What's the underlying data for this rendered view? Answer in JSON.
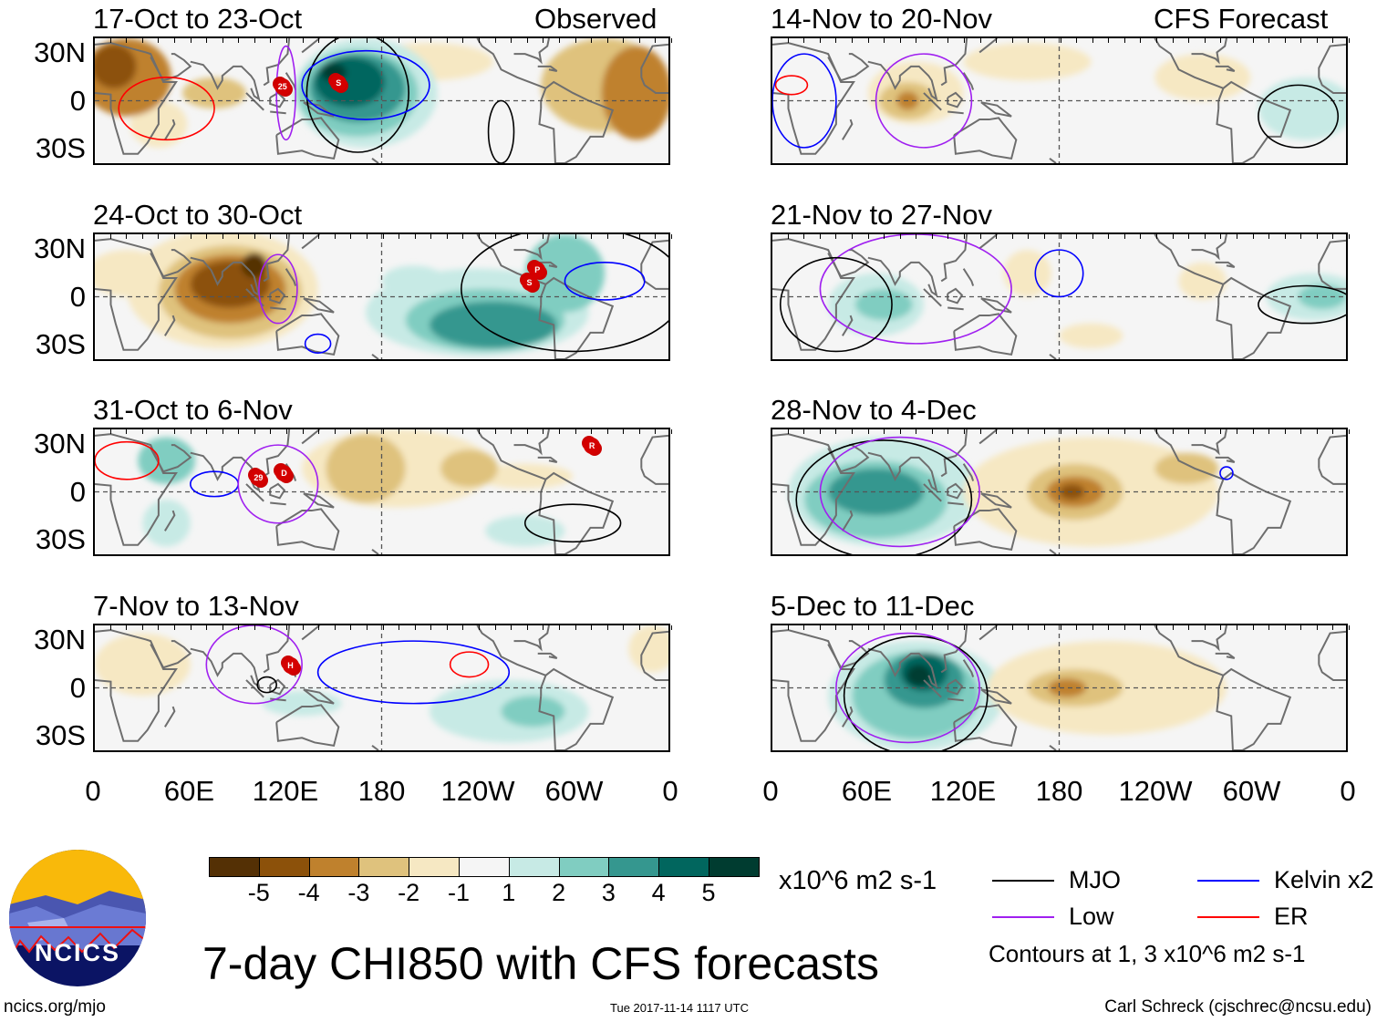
{
  "title": "7-day CHI850 with CFS forecasts",
  "footer": {
    "site": "ncics.org/mjo",
    "timestamp": "Tue 2017-11-14 1117 UTC",
    "author": "Carl Schreck (cjschrec@ncsu.edu)"
  },
  "logo": {
    "text": "NCICS"
  },
  "columns": [
    {
      "label": "Observed"
    },
    {
      "label": "CFS Forecast"
    }
  ],
  "lat_labels": [
    "30N",
    "0",
    "30S"
  ],
  "lon_labels": [
    "0",
    "60E",
    "120E",
    "180",
    "120W",
    "60W",
    "0"
  ],
  "colorbar": {
    "units": "x10^6 m2 s-1",
    "labels": [
      "-5",
      "-4",
      "-3",
      "-2",
      "-1",
      "1",
      "2",
      "3",
      "4",
      "5"
    ],
    "colors": [
      "#543005",
      "#8c510a",
      "#bf812d",
      "#dfc27d",
      "#f6e8c3",
      "#f5f5f5",
      "#c7eae5",
      "#80cdc1",
      "#35978f",
      "#01665e",
      "#003c30"
    ]
  },
  "legend": {
    "items": [
      {
        "label": "MJO",
        "color": "#000000"
      },
      {
        "label": "Kelvin x2",
        "color": "#0000ff"
      },
      {
        "label": "Low",
        "color": "#a020f0"
      },
      {
        "label": "ER",
        "color": "#ff0000"
      }
    ],
    "note": "Contours at 1, 3 x10^6 m2 s-1"
  },
  "panels": [
    {
      "title": "17-Oct to 23-Oct",
      "col": 0,
      "row": 0,
      "anomalies": [
        {
          "lon": 20,
          "lat": 15,
          "rx": 28,
          "ry": 25,
          "level": -3
        },
        {
          "lon": 12,
          "lat": 22,
          "rx": 14,
          "ry": 14,
          "level": -4
        },
        {
          "lon": 75,
          "lat": 5,
          "rx": 20,
          "ry": 10,
          "level": -2
        },
        {
          "lon": 40,
          "lat": -15,
          "rx": 18,
          "ry": 15,
          "level": -1
        },
        {
          "lon": 210,
          "lat": 25,
          "rx": 40,
          "ry": 12,
          "level": -1
        },
        {
          "lon": 320,
          "lat": 10,
          "rx": 40,
          "ry": 30,
          "level": -2
        },
        {
          "lon": 340,
          "lat": 5,
          "rx": 22,
          "ry": 30,
          "level": -3
        },
        {
          "lon": 170,
          "lat": 5,
          "rx": 45,
          "ry": 35,
          "level": 1
        },
        {
          "lon": 165,
          "lat": 5,
          "rx": 38,
          "ry": 28,
          "level": 2
        },
        {
          "lon": 165,
          "lat": 8,
          "rx": 30,
          "ry": 22,
          "level": 3
        },
        {
          "lon": 160,
          "lat": 12,
          "rx": 22,
          "ry": 16,
          "level": 4
        },
        {
          "lon": 150,
          "lat": 18,
          "rx": 8,
          "ry": 6,
          "level": 5
        }
      ],
      "contours": [
        {
          "type": "mjo",
          "lon": 165,
          "lat": 5,
          "rx": 32,
          "ry": 38
        },
        {
          "type": "kelvin",
          "lon": 170,
          "lat": 10,
          "rx": 40,
          "ry": 22
        },
        {
          "type": "er",
          "lon": 45,
          "lat": -5,
          "rx": 30,
          "ry": 20
        },
        {
          "type": "low",
          "lon": 120,
          "lat": 5,
          "rx": 6,
          "ry": 30
        },
        {
          "type": "mjo",
          "lon": 255,
          "lat": -20,
          "rx": 8,
          "ry": 20
        }
      ],
      "storms": [
        {
          "label": "25",
          "lon": 117,
          "lat": 10
        },
        {
          "label": "S",
          "lon": 152,
          "lat": 12
        }
      ]
    },
    {
      "title": "24-Oct to 30-Oct",
      "col": 0,
      "row": 1,
      "anomalies": [
        {
          "lon": 80,
          "lat": 5,
          "rx": 60,
          "ry": 38,
          "level": -1
        },
        {
          "lon": 85,
          "lat": 3,
          "rx": 45,
          "ry": 30,
          "level": -2
        },
        {
          "lon": 85,
          "lat": 5,
          "rx": 35,
          "ry": 22,
          "level": -3
        },
        {
          "lon": 85,
          "lat": 8,
          "rx": 25,
          "ry": 15,
          "level": -4
        },
        {
          "lon": 100,
          "lat": 20,
          "rx": 8,
          "ry": 8,
          "level": -5
        },
        {
          "lon": 20,
          "lat": 15,
          "rx": 25,
          "ry": 15,
          "level": -1
        },
        {
          "lon": 240,
          "lat": -10,
          "rx": 70,
          "ry": 28,
          "level": 1
        },
        {
          "lon": 245,
          "lat": -15,
          "rx": 50,
          "ry": 20,
          "level": 2
        },
        {
          "lon": 250,
          "lat": -18,
          "rx": 40,
          "ry": 15,
          "level": 3
        },
        {
          "lon": 295,
          "lat": 15,
          "rx": 25,
          "ry": 25,
          "level": 2
        },
        {
          "lon": 200,
          "lat": 10,
          "rx": 20,
          "ry": 10,
          "level": 1
        }
      ],
      "contours": [
        {
          "type": "low",
          "lon": 115,
          "lat": 5,
          "rx": 12,
          "ry": 22
        },
        {
          "type": "mjo",
          "lon": 300,
          "lat": 5,
          "rx": 70,
          "ry": 40
        },
        {
          "type": "kelvin",
          "lon": 320,
          "lat": 10,
          "rx": 25,
          "ry": 12
        },
        {
          "type": "kelvin",
          "lon": 140,
          "lat": -30,
          "rx": 8,
          "ry": 6
        }
      ],
      "storms": [
        {
          "label": "P",
          "lon": 276,
          "lat": 18
        },
        {
          "label": "S",
          "lon": 271,
          "lat": 10
        }
      ]
    },
    {
      "title": "31-Oct to 6-Nov",
      "col": 0,
      "row": 2,
      "anomalies": [
        {
          "lon": 190,
          "lat": 15,
          "rx": 60,
          "ry": 25,
          "level": -1
        },
        {
          "lon": 170,
          "lat": 15,
          "rx": 25,
          "ry": 22,
          "level": -2
        },
        {
          "lon": 235,
          "lat": 15,
          "rx": 18,
          "ry": 12,
          "level": -2
        },
        {
          "lon": 270,
          "lat": 10,
          "rx": 30,
          "ry": 8,
          "level": -1
        },
        {
          "lon": 45,
          "lat": 20,
          "rx": 18,
          "ry": 15,
          "level": 2
        },
        {
          "lon": 45,
          "lat": -20,
          "rx": 15,
          "ry": 15,
          "level": 1
        },
        {
          "lon": 270,
          "lat": -25,
          "rx": 25,
          "ry": 10,
          "level": 1
        }
      ],
      "contours": [
        {
          "type": "er",
          "lon": 20,
          "lat": 20,
          "rx": 20,
          "ry": 12
        },
        {
          "type": "kelvin",
          "lon": 75,
          "lat": 5,
          "rx": 15,
          "ry": 8
        },
        {
          "type": "low",
          "lon": 115,
          "lat": 5,
          "rx": 25,
          "ry": 25
        },
        {
          "type": "mjo",
          "lon": 300,
          "lat": -20,
          "rx": 30,
          "ry": 12
        }
      ],
      "storms": [
        {
          "label": "29",
          "lon": 102,
          "lat": 10
        },
        {
          "label": "D",
          "lon": 118,
          "lat": 13
        },
        {
          "label": "R",
          "lon": 310,
          "lat": 30
        }
      ]
    },
    {
      "title": "7-Nov to 13-Nov",
      "col": 0,
      "row": 3,
      "anomalies": [
        {
          "lon": 30,
          "lat": 15,
          "rx": 30,
          "ry": 20,
          "level": -1
        },
        {
          "lon": 350,
          "lat": 25,
          "rx": 15,
          "ry": 15,
          "level": -1
        },
        {
          "lon": 260,
          "lat": -15,
          "rx": 50,
          "ry": 20,
          "level": 1
        },
        {
          "lon": 275,
          "lat": -15,
          "rx": 20,
          "ry": 10,
          "level": 2
        },
        {
          "lon": 130,
          "lat": -10,
          "rx": 25,
          "ry": 8,
          "level": 1
        }
      ],
      "contours": [
        {
          "type": "low",
          "lon": 100,
          "lat": 15,
          "rx": 30,
          "ry": 25
        },
        {
          "type": "kelvin",
          "lon": 200,
          "lat": 10,
          "rx": 60,
          "ry": 20
        },
        {
          "type": "er",
          "lon": 235,
          "lat": 15,
          "rx": 12,
          "ry": 8
        },
        {
          "type": "mjo",
          "lon": 108,
          "lat": 2,
          "rx": 6,
          "ry": 5
        }
      ],
      "storms": [
        {
          "label": "H",
          "lon": 122,
          "lat": 15
        }
      ]
    },
    {
      "title": "14-Nov to 20-Nov",
      "col": 1,
      "row": 0,
      "anomalies": [
        {
          "lon": 90,
          "lat": 5,
          "rx": 30,
          "ry": 20,
          "level": -1
        },
        {
          "lon": 85,
          "lat": 0,
          "rx": 18,
          "ry": 12,
          "level": -2
        },
        {
          "lon": 85,
          "lat": 0,
          "rx": 7,
          "ry": 6,
          "level": -3
        },
        {
          "lon": 160,
          "lat": 25,
          "rx": 40,
          "ry": 12,
          "level": -1
        },
        {
          "lon": 270,
          "lat": 15,
          "rx": 30,
          "ry": 15,
          "level": -1
        },
        {
          "lon": 335,
          "lat": -5,
          "rx": 30,
          "ry": 20,
          "level": 1
        }
      ],
      "contours": [
        {
          "type": "low",
          "lon": 95,
          "lat": 0,
          "rx": 30,
          "ry": 30
        },
        {
          "type": "er",
          "lon": 12,
          "lat": 10,
          "rx": 10,
          "ry": 6
        },
        {
          "type": "kelvin",
          "lon": 20,
          "lat": 0,
          "rx": 20,
          "ry": 30
        },
        {
          "type": "mjo",
          "lon": 330,
          "lat": -10,
          "rx": 25,
          "ry": 20
        }
      ],
      "storms": []
    },
    {
      "title": "21-Nov to 27-Nov",
      "col": 1,
      "row": 1,
      "anomalies": [
        {
          "lon": 65,
          "lat": -5,
          "rx": 30,
          "ry": 20,
          "level": 1
        },
        {
          "lon": 70,
          "lat": -5,
          "rx": 18,
          "ry": 10,
          "level": 2
        },
        {
          "lon": 160,
          "lat": 15,
          "rx": 15,
          "ry": 15,
          "level": -1
        },
        {
          "lon": 270,
          "lat": 10,
          "rx": 15,
          "ry": 12,
          "level": -1
        },
        {
          "lon": 340,
          "lat": 0,
          "rx": 30,
          "ry": 15,
          "level": 1
        },
        {
          "lon": 345,
          "lat": 0,
          "rx": 15,
          "ry": 8,
          "level": 2
        },
        {
          "lon": 200,
          "lat": -25,
          "rx": 20,
          "ry": 8,
          "level": -1
        }
      ],
      "contours": [
        {
          "type": "kelvin",
          "lon": 180,
          "lat": 15,
          "rx": 15,
          "ry": 15
        },
        {
          "type": "low",
          "lon": 90,
          "lat": 5,
          "rx": 60,
          "ry": 35
        },
        {
          "type": "mjo",
          "lon": 40,
          "lat": -5,
          "rx": 35,
          "ry": 30
        },
        {
          "type": "mjo",
          "lon": 335,
          "lat": -5,
          "rx": 30,
          "ry": 12
        }
      ],
      "storms": []
    },
    {
      "title": "28-Nov to 4-Dec",
      "col": 1,
      "row": 2,
      "anomalies": [
        {
          "lon": 70,
          "lat": 0,
          "rx": 60,
          "ry": 35,
          "level": 1
        },
        {
          "lon": 65,
          "lat": -5,
          "rx": 45,
          "ry": 25,
          "level": 2
        },
        {
          "lon": 65,
          "lat": 0,
          "rx": 30,
          "ry": 15,
          "level": 3
        },
        {
          "lon": 200,
          "lat": 0,
          "rx": 80,
          "ry": 35,
          "level": -1
        },
        {
          "lon": 190,
          "lat": 0,
          "rx": 30,
          "ry": 18,
          "level": -2
        },
        {
          "lon": 190,
          "lat": 0,
          "rx": 18,
          "ry": 10,
          "level": -3
        },
        {
          "lon": 188,
          "lat": 0,
          "rx": 8,
          "ry": 5,
          "level": -4
        },
        {
          "lon": 260,
          "lat": 15,
          "rx": 20,
          "ry": 10,
          "level": -2
        }
      ],
      "contours": [
        {
          "type": "mjo",
          "lon": 70,
          "lat": -5,
          "rx": 55,
          "ry": 38
        },
        {
          "type": "low",
          "lon": 80,
          "lat": 0,
          "rx": 50,
          "ry": 35
        },
        {
          "type": "kelvin",
          "lon": 285,
          "lat": 12,
          "rx": 4,
          "ry": 4
        }
      ],
      "storms": []
    },
    {
      "title": "5-Dec to 11-Dec",
      "col": 1,
      "row": 3,
      "anomalies": [
        {
          "lon": 90,
          "lat": -5,
          "rx": 55,
          "ry": 35,
          "level": 1
        },
        {
          "lon": 90,
          "lat": -5,
          "rx": 40,
          "ry": 28,
          "level": 2
        },
        {
          "lon": 95,
          "lat": 5,
          "rx": 25,
          "ry": 18,
          "level": 3
        },
        {
          "lon": 95,
          "lat": 10,
          "rx": 15,
          "ry": 12,
          "level": 4
        },
        {
          "lon": 92,
          "lat": 8,
          "rx": 8,
          "ry": 7,
          "level": 5
        },
        {
          "lon": 210,
          "lat": 0,
          "rx": 75,
          "ry": 30,
          "level": -1
        },
        {
          "lon": 190,
          "lat": 0,
          "rx": 30,
          "ry": 12,
          "level": -2
        },
        {
          "lon": 185,
          "lat": 0,
          "rx": 12,
          "ry": 6,
          "level": -3
        }
      ],
      "contours": [
        {
          "type": "mjo",
          "lon": 90,
          "lat": -5,
          "rx": 45,
          "ry": 38
        },
        {
          "type": "low",
          "lon": 85,
          "lat": 0,
          "rx": 45,
          "ry": 35
        }
      ],
      "storms": []
    }
  ]
}
